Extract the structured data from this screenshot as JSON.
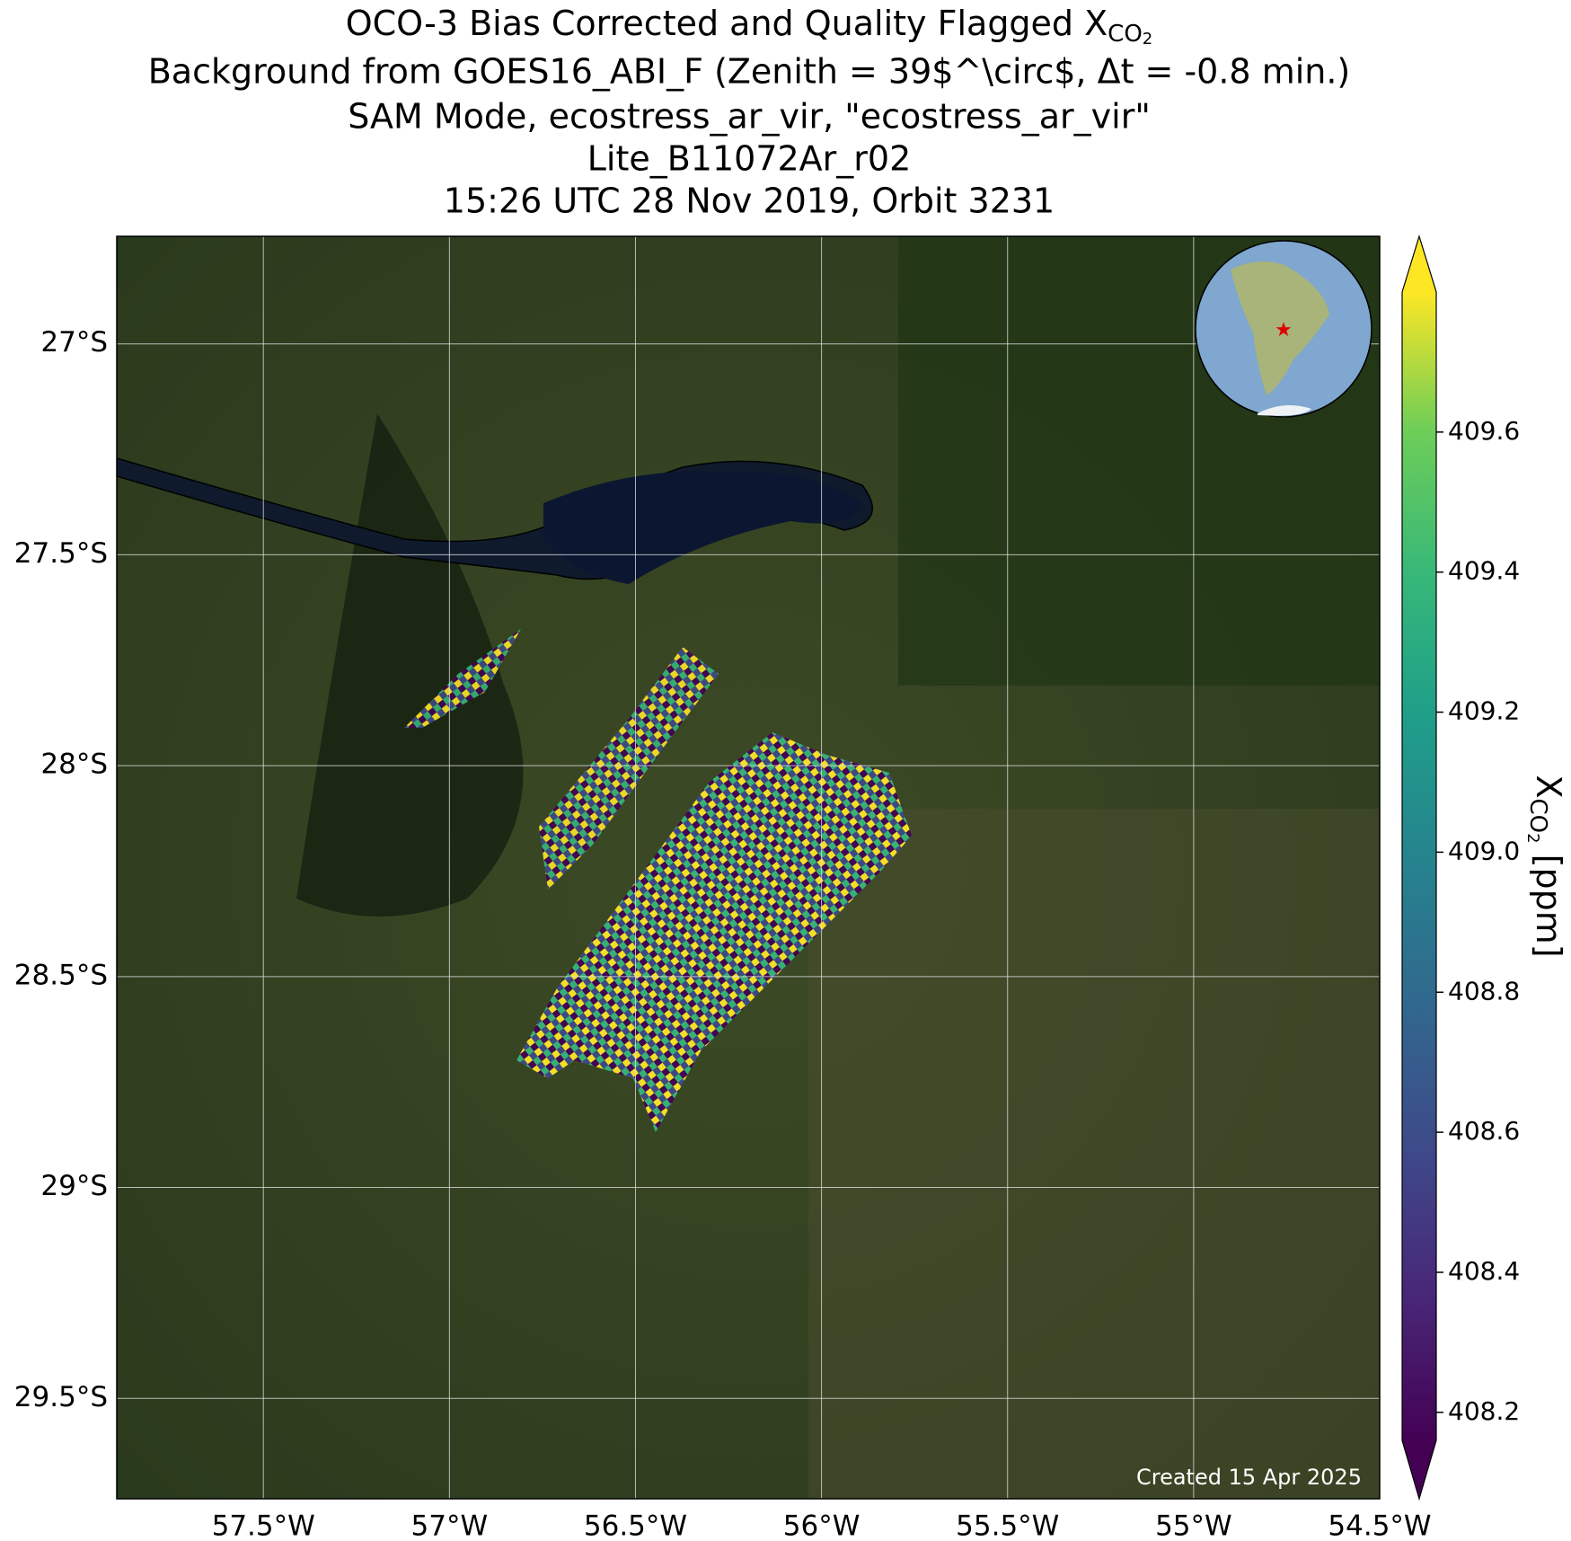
{
  "map": {
    "title": {
      "line1": {
        "text": "OCO-3 Bias Corrected and Quality Flagged X",
        "sub": "CO",
        "subsub": "2"
      },
      "line2": "Background from GOES16_ABI_F (Zenith = 39$^\\circ$, Δt = -0.8 min.)",
      "line3": "SAM Mode, ecostress_ar_vir, \"ecostress_ar_vir\"",
      "line4": "Lite_B11072Ar_r02",
      "line5": "15:26 UTC 28 Nov 2019, Orbit 3231"
    },
    "xlim": [
      -57.894,
      -54.5
    ],
    "ylim": [
      -29.738,
      -26.745
    ],
    "xticks": [
      {
        "value": -57.5,
        "label": "57.5°W"
      },
      {
        "value": -57,
        "label": "57°W"
      },
      {
        "value": -56.5,
        "label": "56.5°W"
      },
      {
        "value": -56,
        "label": "56°W"
      },
      {
        "value": -55.5,
        "label": "55.5°W"
      },
      {
        "value": -55,
        "label": "55°W"
      },
      {
        "value": -54.5,
        "label": "54.5°W"
      }
    ],
    "yticks": [
      {
        "value": -27,
        "label": "27°S"
      },
      {
        "value": -27.5,
        "label": "27.5°S"
      },
      {
        "value": -28,
        "label": "28°S"
      },
      {
        "value": -28.5,
        "label": "28.5°S"
      },
      {
        "value": -29,
        "label": "29°S"
      },
      {
        "value": -29.5,
        "label": "29.5°S"
      }
    ],
    "colorbar": {
      "label": {
        "text": "X",
        "sub": "CO",
        "subsub": "2",
        "unit": " [ppm]"
      },
      "lim": [
        408.16,
        409.8
      ],
      "ticks": [
        408.2,
        408.4,
        408.6,
        408.8,
        409.0,
        409.2,
        409.4,
        409.6
      ]
    },
    "footer": "Created 15 Apr 2025"
  }
}
